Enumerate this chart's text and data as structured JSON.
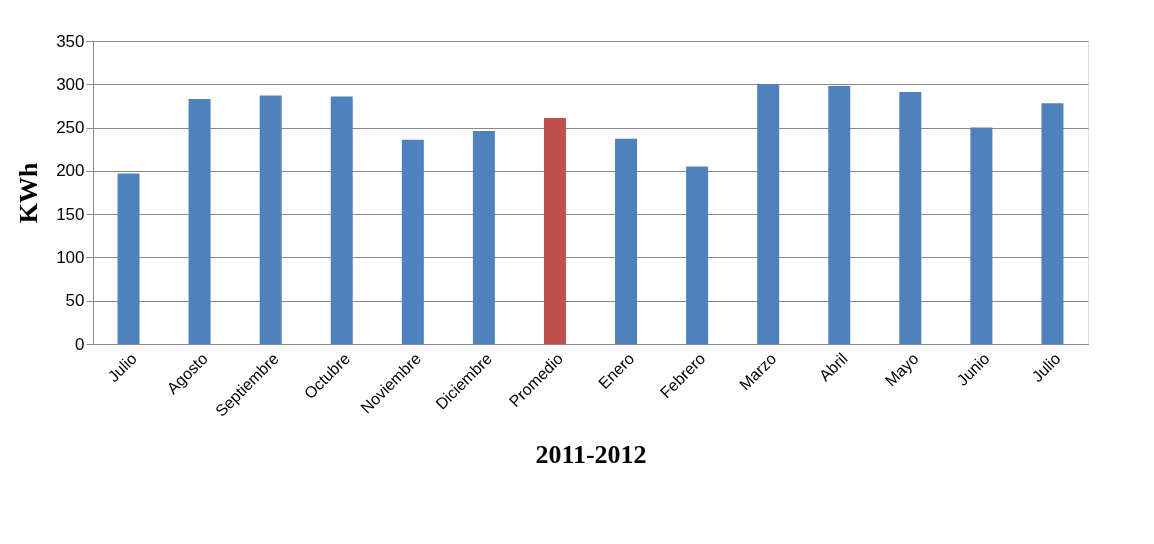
{
  "chart_data": {
    "type": "bar",
    "xlabel": "2011-2012",
    "ylabel": "KWh",
    "categories": [
      "Julio",
      "Agosto",
      "Septiembre",
      "Octubre",
      "Noviembre",
      "Diciembre",
      "Promedio",
      "Enero",
      "Febrero",
      "Marzo",
      "Abril",
      "Mayo",
      "Junio",
      "Julio"
    ],
    "values": [
      197,
      283,
      287,
      286,
      236,
      246,
      261,
      237,
      205,
      300,
      298,
      291,
      250,
      278
    ],
    "colors": [
      "#4f81bd",
      "#4f81bd",
      "#4f81bd",
      "#4f81bd",
      "#4f81bd",
      "#4f81bd",
      "#c0504d",
      "#4f81bd",
      "#4f81bd",
      "#4f81bd",
      "#4f81bd",
      "#4f81bd",
      "#4f81bd",
      "#4f81bd"
    ],
    "ylim": [
      0,
      350
    ],
    "yticks": [
      0,
      50,
      100,
      150,
      200,
      250,
      300,
      350
    ],
    "grid": "y"
  }
}
